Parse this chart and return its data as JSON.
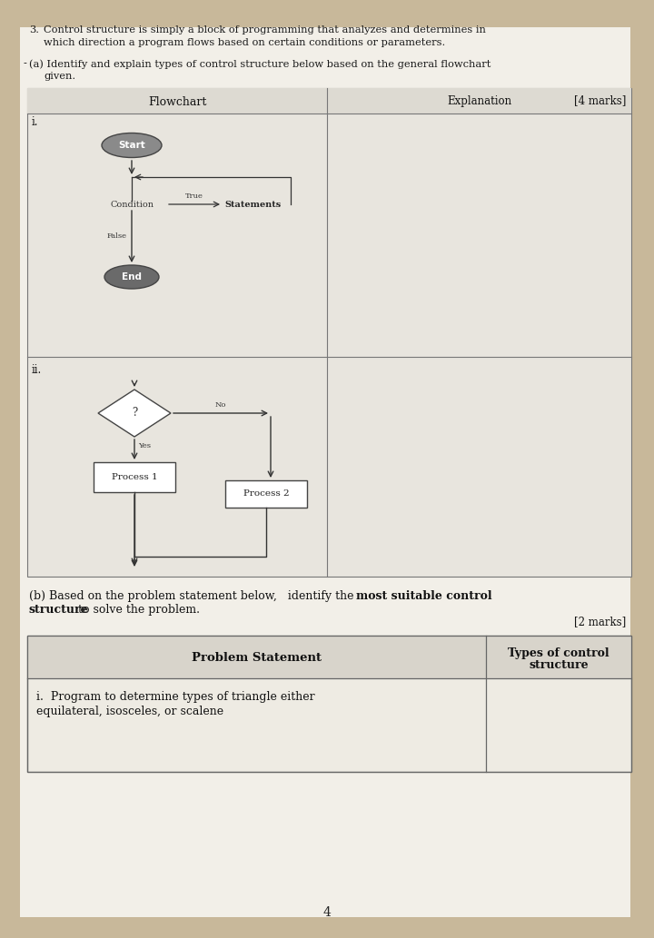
{
  "bg_color": "#c8b89a",
  "paper_color": "#f2efe8",
  "table_bg": "#e8e5de",
  "q3_num": "3.",
  "q3_line1": "Control structure is simply a block of programming that analyzes and determines in",
  "q3_line2": "which direction a program flows based on certain conditions or parameters.",
  "qa_line1": "(a) Identify and explain types of control structure below based on the general flowchart",
  "qa_line2": "     given.",
  "col1_header": "Flowchart",
  "col2_header": "Explanation",
  "marks_a": "[4 marks]",
  "row_i": "i.",
  "row_ii": "ii.",
  "start_label": "Start",
  "end_label": "End",
  "condition_label": "Condition",
  "true_label": "True",
  "statements_label": "Statements",
  "false_label": "False",
  "q_mark": "?",
  "yes_label": "Yes",
  "no_label": "No",
  "process1_label": "Process 1",
  "process2_label": "Process 2",
  "qb_text1": "(b) Based on the problem statement below,   identify the ",
  "qb_bold1": "most suitable control",
  "qb_bold2": "structure",
  "qb_text2": " to solve the problem.",
  "marks_b": "[2 marks]",
  "prob_col1": "Problem Statement",
  "prob_col2_1": "Types of control",
  "prob_col2_2": "structure",
  "prob_row1": "i.  Program to determine types of triangle either",
  "prob_row2": "equilateral, isosceles, or scalene",
  "page_num": "4",
  "start_color": "#8a8a8a",
  "end_color": "#6a6a6a"
}
